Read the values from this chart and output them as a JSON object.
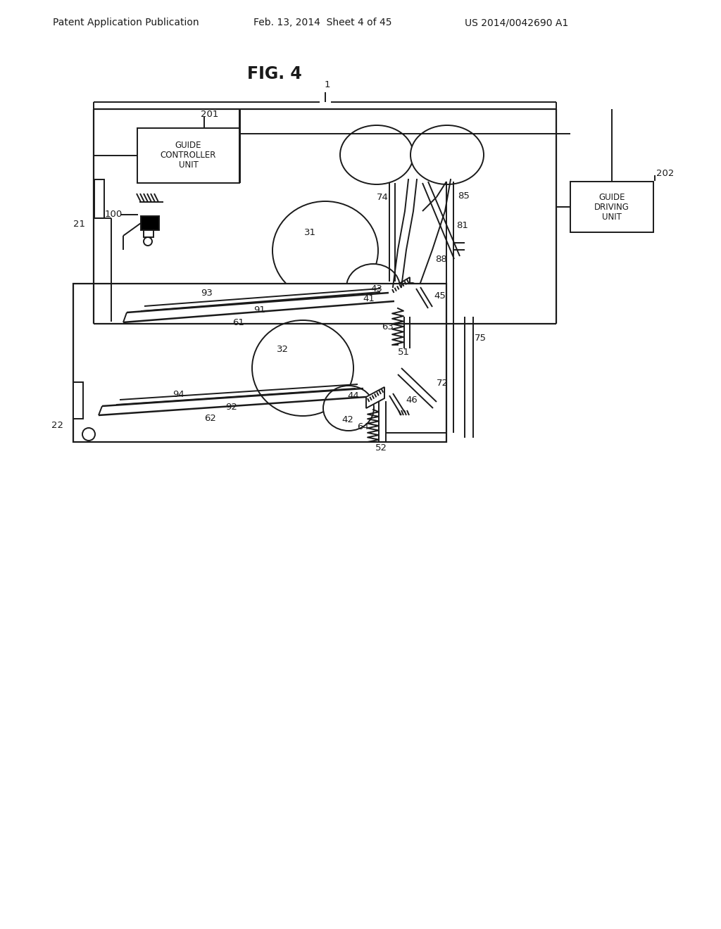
{
  "header_left": "Patent Application Publication",
  "header_center": "Feb. 13, 2014  Sheet 4 of 45",
  "header_right": "US 2014/0042690 A1",
  "title": "FIG. 4",
  "bg_color": "#ffffff",
  "line_color": "#1a1a1a",
  "lfs": 9.5,
  "hfs": 10,
  "tfs": 17
}
